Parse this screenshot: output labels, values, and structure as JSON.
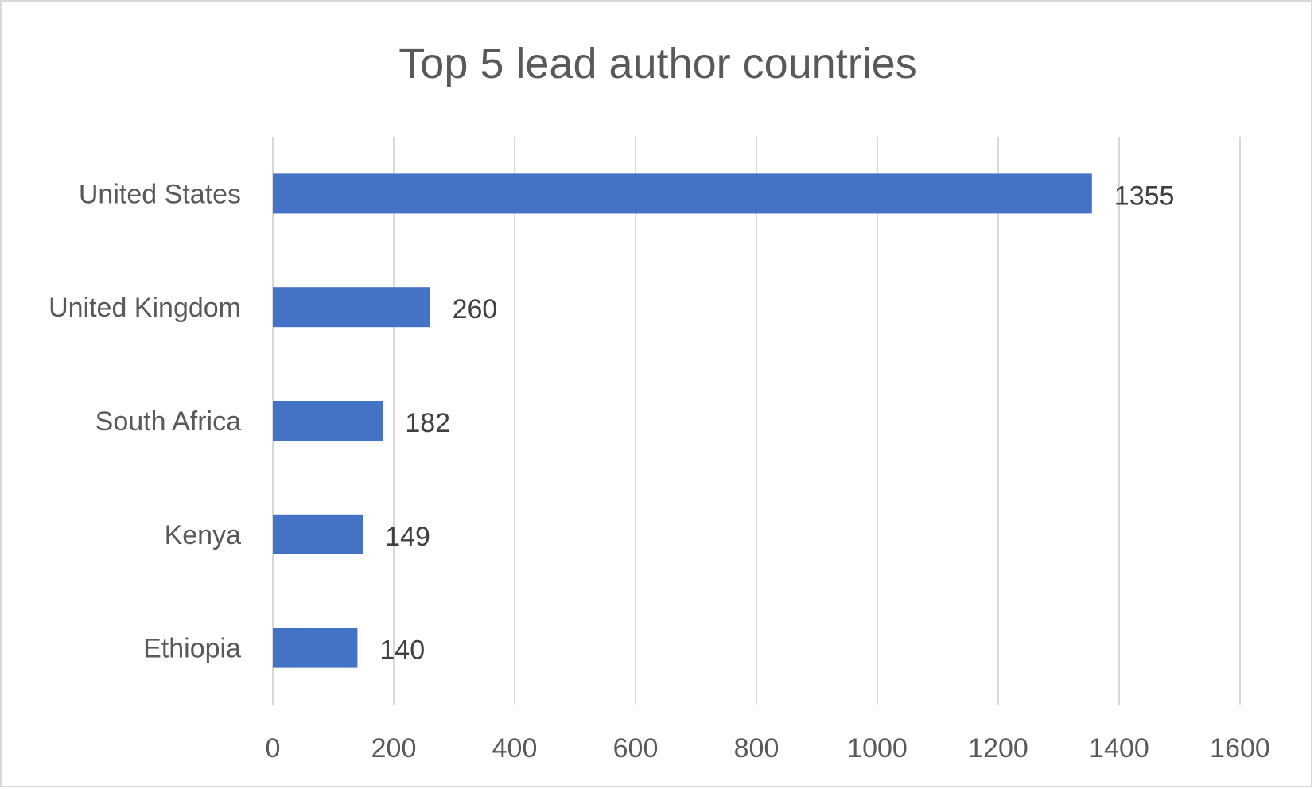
{
  "chart_data": {
    "type": "bar",
    "orientation": "horizontal",
    "title": "Top 5 lead author countries",
    "xlabel": "",
    "ylabel": "",
    "categories": [
      "United States",
      "United Kingdom",
      "South Africa",
      "Kenya",
      "Ethiopia"
    ],
    "values": [
      1355,
      260,
      182,
      149,
      140
    ],
    "xlim": [
      0,
      1600
    ],
    "ticks": [
      0,
      200,
      400,
      600,
      800,
      1000,
      1200,
      1400,
      1600
    ],
    "grid": true,
    "legend": "none",
    "data_labels": true,
    "bar_color": "#4472c4"
  }
}
